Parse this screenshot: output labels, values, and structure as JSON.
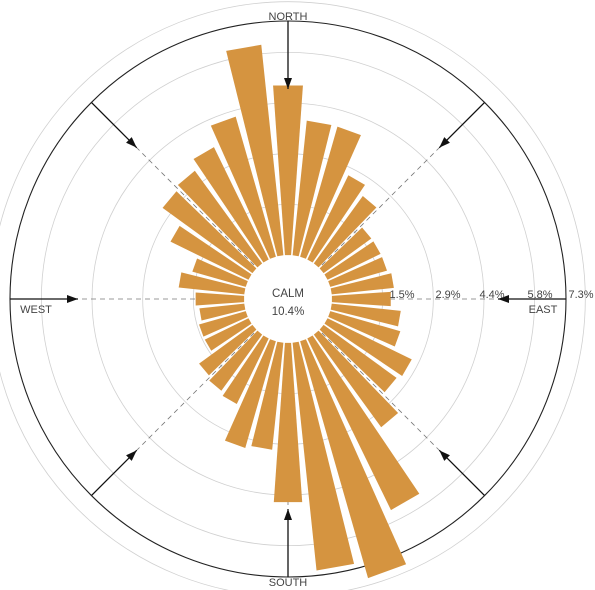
{
  "chart_data": {
    "type": "wind-rose",
    "bar_color": "#D59440",
    "directions": {
      "north": "NORTH",
      "south": "SOUTH",
      "east": "EAST",
      "west": "WEST"
    },
    "calm": {
      "label": "CALM",
      "value": "10.4%"
    },
    "ring_labels": [
      "1.5%",
      "2.9%",
      "4.4%",
      "5.8%",
      "7.3%"
    ],
    "rmax": 7.3,
    "sectors": [
      {
        "dir": 0,
        "value": 4.9
      },
      {
        "dir": 10,
        "value": 3.9
      },
      {
        "dir": 20,
        "value": 3.9
      },
      {
        "dir": 30,
        "value": 2.7
      },
      {
        "dir": 40,
        "value": 2.4
      },
      {
        "dir": 50,
        "value": 1.7
      },
      {
        "dir": 60,
        "value": 1.7
      },
      {
        "dir": 70,
        "value": 1.7
      },
      {
        "dir": 80,
        "value": 1.8
      },
      {
        "dir": 90,
        "value": 1.7
      },
      {
        "dir": 100,
        "value": 2.0
      },
      {
        "dir": 110,
        "value": 2.1
      },
      {
        "dir": 120,
        "value": 2.7
      },
      {
        "dir": 130,
        "value": 2.6
      },
      {
        "dir": 140,
        "value": 3.3
      },
      {
        "dir": 150,
        "value": 5.5
      },
      {
        "dir": 160,
        "value": 7.1
      },
      {
        "dir": 170,
        "value": 6.6
      },
      {
        "dir": 180,
        "value": 4.6
      },
      {
        "dir": 190,
        "value": 3.1
      },
      {
        "dir": 200,
        "value": 3.2
      },
      {
        "dir": 210,
        "value": 2.1
      },
      {
        "dir": 220,
        "value": 2.0
      },
      {
        "dir": 230,
        "value": 1.9
      },
      {
        "dir": 240,
        "value": 1.4
      },
      {
        "dir": 250,
        "value": 1.4
      },
      {
        "dir": 260,
        "value": 1.3
      },
      {
        "dir": 270,
        "value": 1.4
      },
      {
        "dir": 280,
        "value": 1.9
      },
      {
        "dir": 290,
        "value": 1.6
      },
      {
        "dir": 300,
        "value": 2.5
      },
      {
        "dir": 310,
        "value": 3.2
      },
      {
        "dir": 320,
        "value": 3.3
      },
      {
        "dir": 330,
        "value": 3.6
      },
      {
        "dir": 340,
        "value": 4.2
      },
      {
        "dir": 350,
        "value": 6.1
      }
    ]
  }
}
